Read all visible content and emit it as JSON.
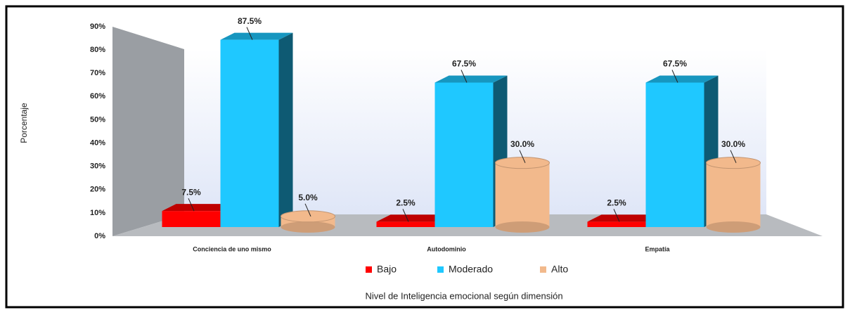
{
  "chart_data": {
    "type": "bar3d",
    "categories": [
      "Conciencia de uno mismo",
      "Autodominio",
      "Empatía"
    ],
    "series": [
      {
        "name": "Bajo",
        "color": "#ff0000",
        "values": [
          7.5,
          2.5,
          2.5
        ],
        "value_labels": [
          "7.5%",
          "2.5%",
          "2.5%"
        ]
      },
      {
        "name": "Moderado",
        "color": "#1fc8ff",
        "values": [
          87.5,
          67.5,
          67.5
        ],
        "value_labels": [
          "87.5%",
          "67.5%",
          "67.5%"
        ]
      },
      {
        "name": "Alto",
        "color": "#f2b98c",
        "values": [
          5.0,
          30.0,
          30.0
        ],
        "value_labels": [
          "5.0%",
          "30.0%",
          "30.0%"
        ]
      }
    ],
    "ylabel": "Porcentaje",
    "xlabel": "Nivel de Inteligencia emocional según dimensión",
    "ylim": [
      0,
      90
    ],
    "yticks": [
      {
        "value": 0,
        "label": "0%"
      },
      {
        "value": 10,
        "label": "10%"
      },
      {
        "value": 20,
        "label": "20%"
      },
      {
        "value": 30,
        "label": "30%"
      },
      {
        "value": 40,
        "label": "40%"
      },
      {
        "value": 50,
        "label": "50%"
      },
      {
        "value": 60,
        "label": "60%"
      },
      {
        "value": 70,
        "label": "70%"
      },
      {
        "value": 80,
        "label": "80%"
      },
      {
        "value": 90,
        "label": "90%"
      }
    ],
    "legend": "bottom"
  }
}
